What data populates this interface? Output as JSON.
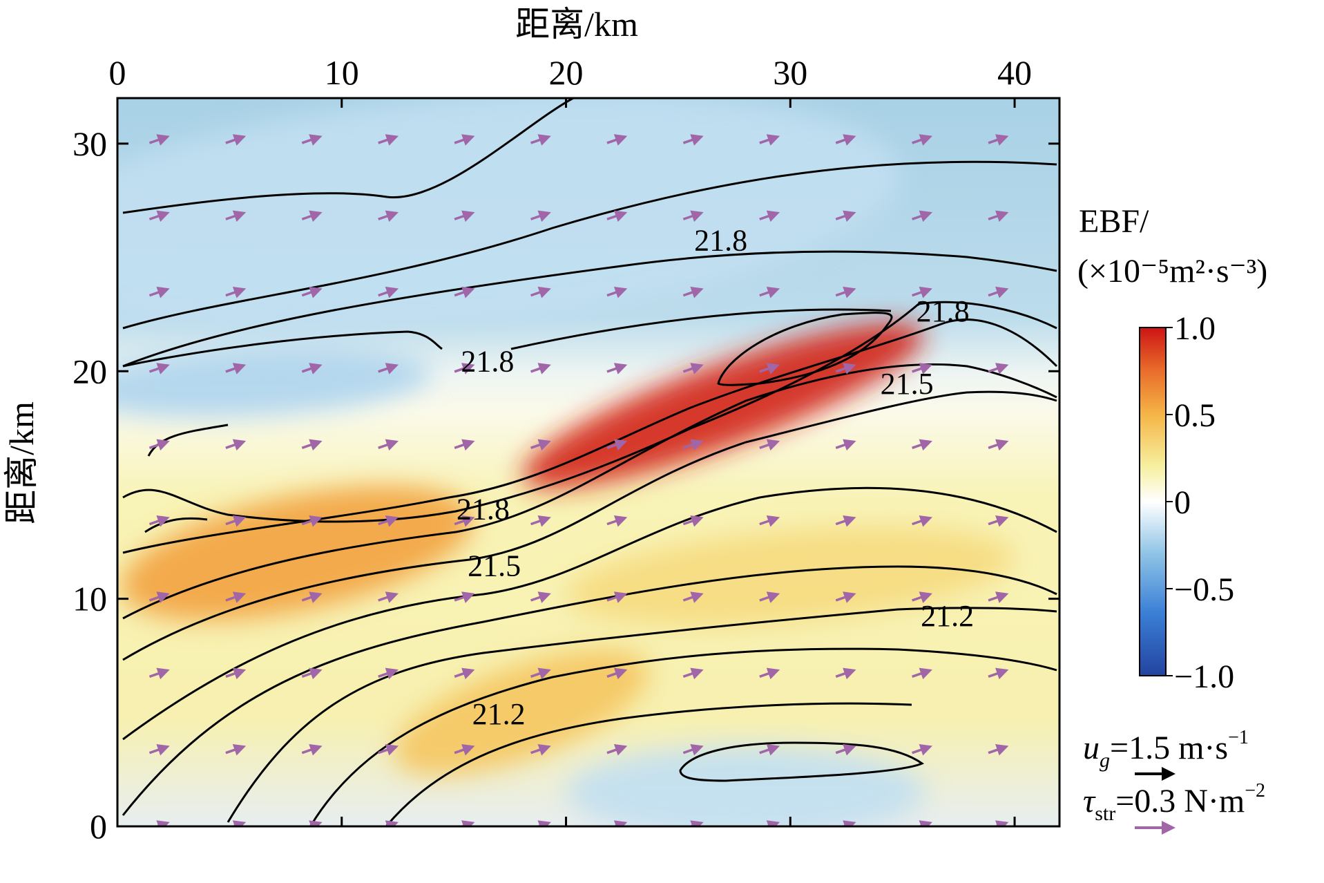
{
  "chart_data": {
    "type": "heatmap",
    "title": "",
    "xlabel": "距离/km",
    "ylabel": "距离/km",
    "xlim": [
      0,
      42
    ],
    "ylim": [
      0,
      32
    ],
    "x_ticks": [
      "0",
      "10",
      "20",
      "30",
      "40"
    ],
    "y_ticks": [
      "0",
      "10",
      "20",
      "30"
    ],
    "colorbar": {
      "title_line1": "EBF/",
      "title_line2": "(×10⁻⁵m²·s⁻³)",
      "range": [
        -1.0,
        1.0
      ],
      "ticks": [
        "1.0",
        "0.5",
        "0",
        "−0.5",
        "−1.0"
      ],
      "tick_values": [
        1.0,
        0.5,
        0,
        -0.5,
        -1.0
      ],
      "colors": [
        "#2343a0",
        "#3a7fd6",
        "#8fc4e6",
        "#ffffff",
        "#f6f0a0",
        "#f5b547",
        "#e86a2a",
        "#cc1414"
      ]
    },
    "contour_labels": [
      {
        "text": "21.8",
        "x": 26.9,
        "y": 25.3
      },
      {
        "text": "21.8",
        "x": 16.5,
        "y": 20.0
      },
      {
        "text": "21.8",
        "x": 36.8,
        "y": 22.2
      },
      {
        "text": "21.5",
        "x": 35.2,
        "y": 19.0
      },
      {
        "text": "21.8",
        "x": 16.3,
        "y": 13.5
      },
      {
        "text": "21.5",
        "x": 16.8,
        "y": 11.0
      },
      {
        "text": "21.2",
        "x": 37.0,
        "y": 8.8
      },
      {
        "text": "21.2",
        "x": 17.0,
        "y": 4.5
      }
    ],
    "ebf_features": [
      {
        "x": 27.0,
        "y": 18.5,
        "rx": 9.5,
        "ry": 1.8,
        "value": 0.95,
        "rotate": -20
      },
      {
        "x": 8.0,
        "y": 12.0,
        "rx": 8.0,
        "ry": 2.5,
        "value": 0.5,
        "rotate": -12
      },
      {
        "x": 30.0,
        "y": 11.0,
        "rx": 10.0,
        "ry": 2.0,
        "value": 0.25,
        "rotate": -5
      },
      {
        "x": 18.0,
        "y": 5.0,
        "rx": 6.0,
        "ry": 2.0,
        "value": 0.35,
        "rotate": -20
      },
      {
        "x": 15.0,
        "y": 27.0,
        "rx": 20.0,
        "ry": 5.0,
        "value": -0.3,
        "rotate": -5
      },
      {
        "x": 6.0,
        "y": 19.5,
        "rx": 8.0,
        "ry": 1.5,
        "value": -0.35,
        "rotate": -3
      },
      {
        "x": 28.0,
        "y": 1.5,
        "rx": 8.0,
        "ry": 2.0,
        "value": -0.3,
        "rotate": 0
      }
    ],
    "legend": {
      "ug_symbol": "u",
      "ug_sub": "g",
      "ug_text": "=1.5 m·s",
      "ug_exp": "−1",
      "ug_color": "#000000",
      "tau_symbol": "τ",
      "tau_sub": "str",
      "tau_text": "=0.3 N·m",
      "tau_exp": "−2",
      "tau_color": "#a066a8"
    }
  }
}
